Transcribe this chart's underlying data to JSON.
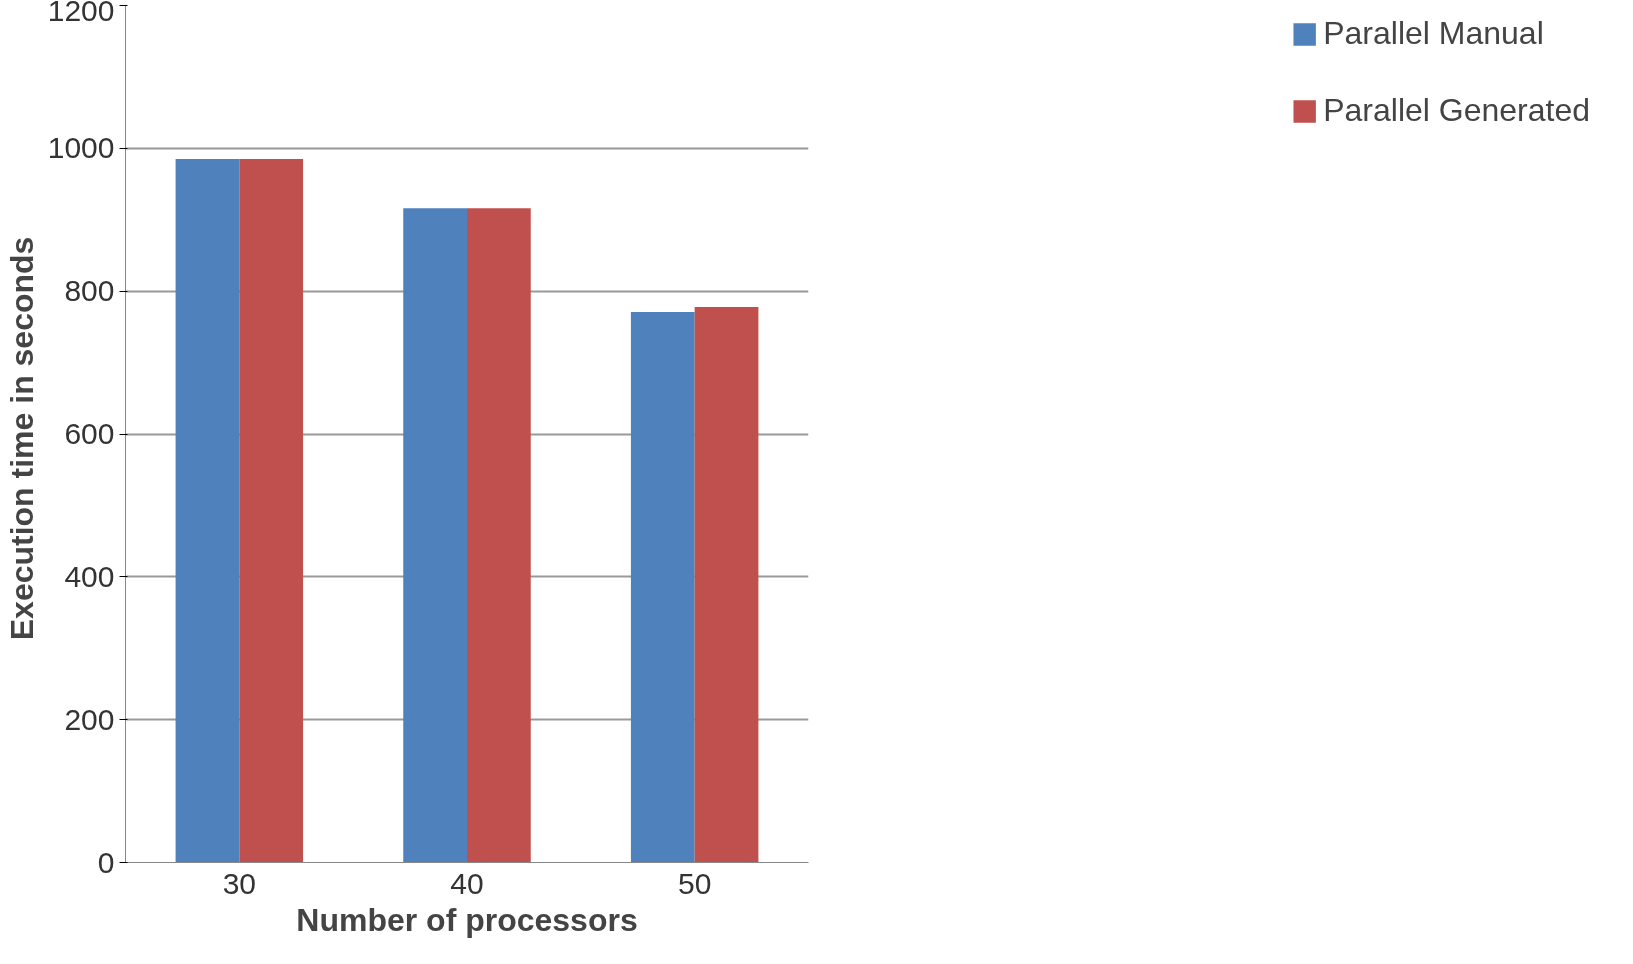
{
  "chart_data": {
    "type": "bar",
    "xlabel": "Number of processors",
    "ylabel": "Execution time in  seconds",
    "categories": [
      "30",
      "40",
      "50"
    ],
    "series": [
      {
        "name": "Parallel Manual",
        "color": "#4f81bd",
        "values": [
          985,
          916,
          771
        ]
      },
      {
        "name": "Parallel Generated",
        "color": "#c0504d",
        "values": [
          985,
          916,
          778
        ]
      }
    ],
    "ylim": [
      0,
      1200
    ],
    "yticks": [
      0,
      200,
      400,
      600,
      800,
      1000,
      1200
    ],
    "grid": "y",
    "legend": "right"
  }
}
